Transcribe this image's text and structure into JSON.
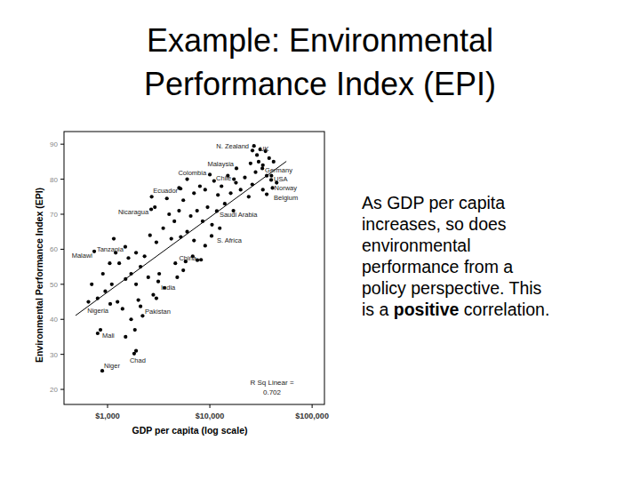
{
  "slide": {
    "title": [
      "Example: Environmental",
      "Performance Index (EPI)"
    ],
    "lines": [
      [
        {
          "text": "As GDP per capita"
        }
      ],
      [
        {
          "text": "increases, so does"
        }
      ],
      [
        {
          "text": "environmental"
        }
      ],
      [
        {
          "text": "performance from a"
        }
      ],
      [
        {
          "text": "policy perspective. This"
        }
      ],
      [
        {
          "text": "is a "
        },
        {
          "text": "positive",
          "bold": true
        },
        {
          "text": " correlation."
        }
      ]
    ]
  },
  "chart_data": {
    "type": "scatter",
    "x_label": "GDP per capita (log scale)",
    "y_label": "Environmental Performance Index (EPI)",
    "log": "x",
    "xlim": [
      375,
      132000
    ],
    "ylim": [
      15.7,
      93.6
    ],
    "xticks": [
      {
        "value": 1000,
        "label": "$1,000"
      },
      {
        "value": 10000,
        "label": "$10,000"
      },
      {
        "value": 100000,
        "label": "$100,000"
      }
    ],
    "yticks": [
      20,
      30,
      40,
      50,
      60,
      70,
      80,
      90
    ],
    "annotation": [
      "R Sq Linear =",
      "0.702"
    ],
    "series": [
      {
        "type": "scatter",
        "marker": "circle",
        "color": "#000000",
        "labels": [
          "N. Zealand",
          "UK",
          "Malaysia",
          "Colombia",
          "Chile",
          "Germany",
          "USA",
          "Norway",
          "Belgium",
          "Ecuador",
          "Nicaragua",
          "Saudi Arabia",
          "S. Africa",
          "Tanzania",
          "Malawi",
          "China",
          "India",
          "Nigeria",
          "Pakistan",
          "Mali",
          "Chad",
          "Niger"
        ],
        "x": [
          26100,
          28900,
          18200,
          10000,
          17200,
          32600,
          39800,
          41000,
          36000,
          5170,
          2670,
          11700,
          10400,
          1490,
          741,
          7550,
          3130,
          1062,
          2100,
          852,
          1820,
          887
        ],
        "values": [
          88.2,
          86.9,
          83.1,
          81.3,
          80.0,
          83.1,
          79.8,
          77.5,
          75.7,
          77.3,
          71.4,
          70.9,
          63.8,
          60.7,
          59.4,
          56.9,
          50.8,
          44.4,
          43.7,
          37.0,
          30.2,
          25.3
        ]
      },
      {
        "type": "scatter",
        "marker": "circle",
        "color": "#000000",
        "x": [
          27000,
          31000,
          35000,
          38000,
          30000,
          25000,
          33000,
          42000,
          28000,
          36000,
          22000,
          40000,
          26000,
          33000,
          45000,
          20000,
          24000,
          18000,
          15000,
          13000,
          11000,
          9000,
          16000,
          12000,
          8000,
          7000,
          6000,
          5500,
          14000,
          17000,
          9500,
          7500,
          6500,
          5000,
          4500,
          4000,
          3500,
          8500,
          10500,
          12500,
          6000,
          5200,
          7000,
          4200,
          3000,
          2600,
          9000,
          8200,
          6800,
          5800,
          4600,
          2300,
          1900,
          1600,
          1300,
          2100,
          1700,
          2500,
          1500,
          1900,
          3600,
          2800,
          1100,
          950,
          800,
          1250,
          1400,
          2200,
          1700,
          650,
          700,
          900,
          1050,
          3200,
          4800,
          1850,
          1500,
          1900,
          5500,
          2000,
          3000,
          800,
          1150,
          1200,
          2900,
          3800,
          5000,
          2700
        ],
        "values": [
          89.5,
          88.5,
          88,
          86,
          85,
          84.5,
          84,
          85,
          82,
          81,
          80.5,
          81,
          78.5,
          77,
          79,
          77,
          75,
          79,
          81,
          78,
          79.5,
          77,
          76,
          75.5,
          78,
          76,
          80,
          74,
          73,
          71,
          72,
          71,
          69.5,
          71,
          68,
          70,
          66,
          68,
          67,
          66,
          65,
          63.5,
          62.5,
          63,
          62,
          64,
          61,
          57,
          58,
          56.5,
          56,
          58,
          59,
          57.5,
          56,
          55,
          53,
          52,
          51.5,
          50,
          49,
          47,
          50,
          48,
          46,
          45,
          43,
          41,
          40,
          45,
          50,
          53,
          56,
          53,
          52,
          37,
          35,
          31,
          54,
          45.5,
          46,
          36,
          63,
          59,
          72,
          74.5,
          77.5,
          75
        ]
      },
      {
        "type": "line",
        "line_style": "solid",
        "color": "#000000",
        "x": [
          487,
          56000
        ],
        "values": [
          41.1,
          85.1
        ]
      }
    ]
  }
}
